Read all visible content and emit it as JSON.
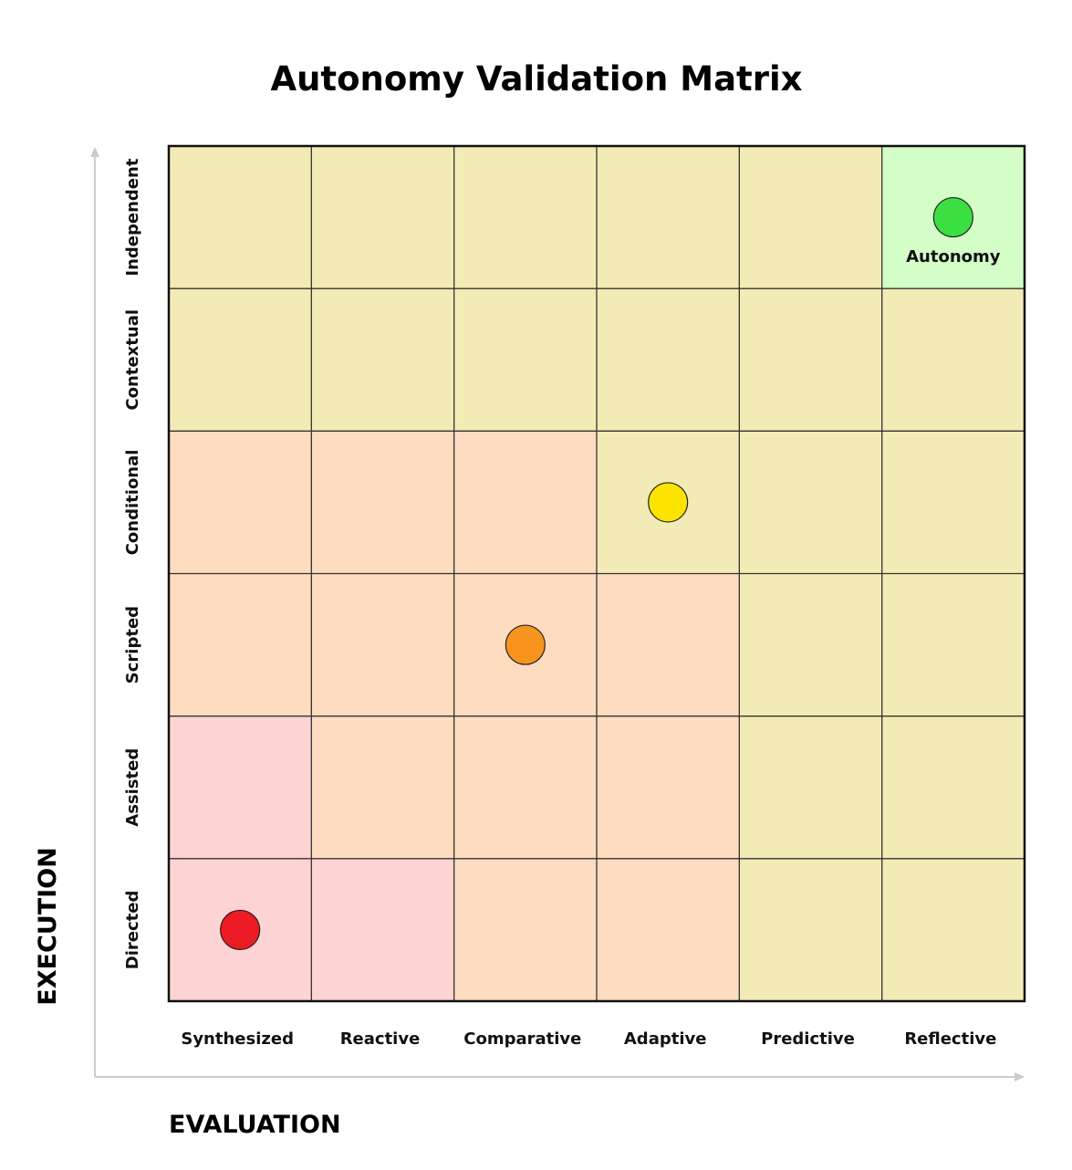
{
  "chart_data": {
    "type": "heatmap",
    "title": "Autonomy Validation Matrix",
    "xlabel": "EVALUATION",
    "ylabel": "EXECUTION",
    "x_categories": [
      "Synthesized",
      "Reactive",
      "Comparative",
      "Adaptive",
      "Predictive",
      "Reflective"
    ],
    "y_categories_bottom_to_top": [
      "Directed",
      "Assisted",
      "Scripted",
      "Conditional",
      "Contextual",
      "Independent"
    ],
    "zone_colors": {
      "P": "#fdd3d4",
      "O": "#fddcc0",
      "Y": "#f3ebb6",
      "G": "#d3fec8"
    },
    "zones_top_to_bottom": [
      [
        "Y",
        "Y",
        "Y",
        "Y",
        "Y",
        "G"
      ],
      [
        "Y",
        "Y",
        "Y",
        "Y",
        "Y",
        "Y"
      ],
      [
        "O",
        "O",
        "O",
        "Y",
        "Y",
        "Y"
      ],
      [
        "O",
        "O",
        "O",
        "O",
        "Y",
        "Y"
      ],
      [
        "P",
        "O",
        "O",
        "O",
        "Y",
        "Y"
      ],
      [
        "P",
        "P",
        "O",
        "O",
        "Y",
        "Y"
      ]
    ],
    "points": [
      {
        "x": "Synthesized",
        "y": "Directed",
        "color": "#ed1c24"
      },
      {
        "x": "Comparative",
        "y": "Scripted",
        "color": "#f7941d"
      },
      {
        "x": "Adaptive",
        "y": "Conditional",
        "color": "#fde300"
      },
      {
        "x": "Reflective",
        "y": "Independent",
        "color": "#3be040",
        "label": "Autonomy"
      }
    ],
    "grid": true
  }
}
